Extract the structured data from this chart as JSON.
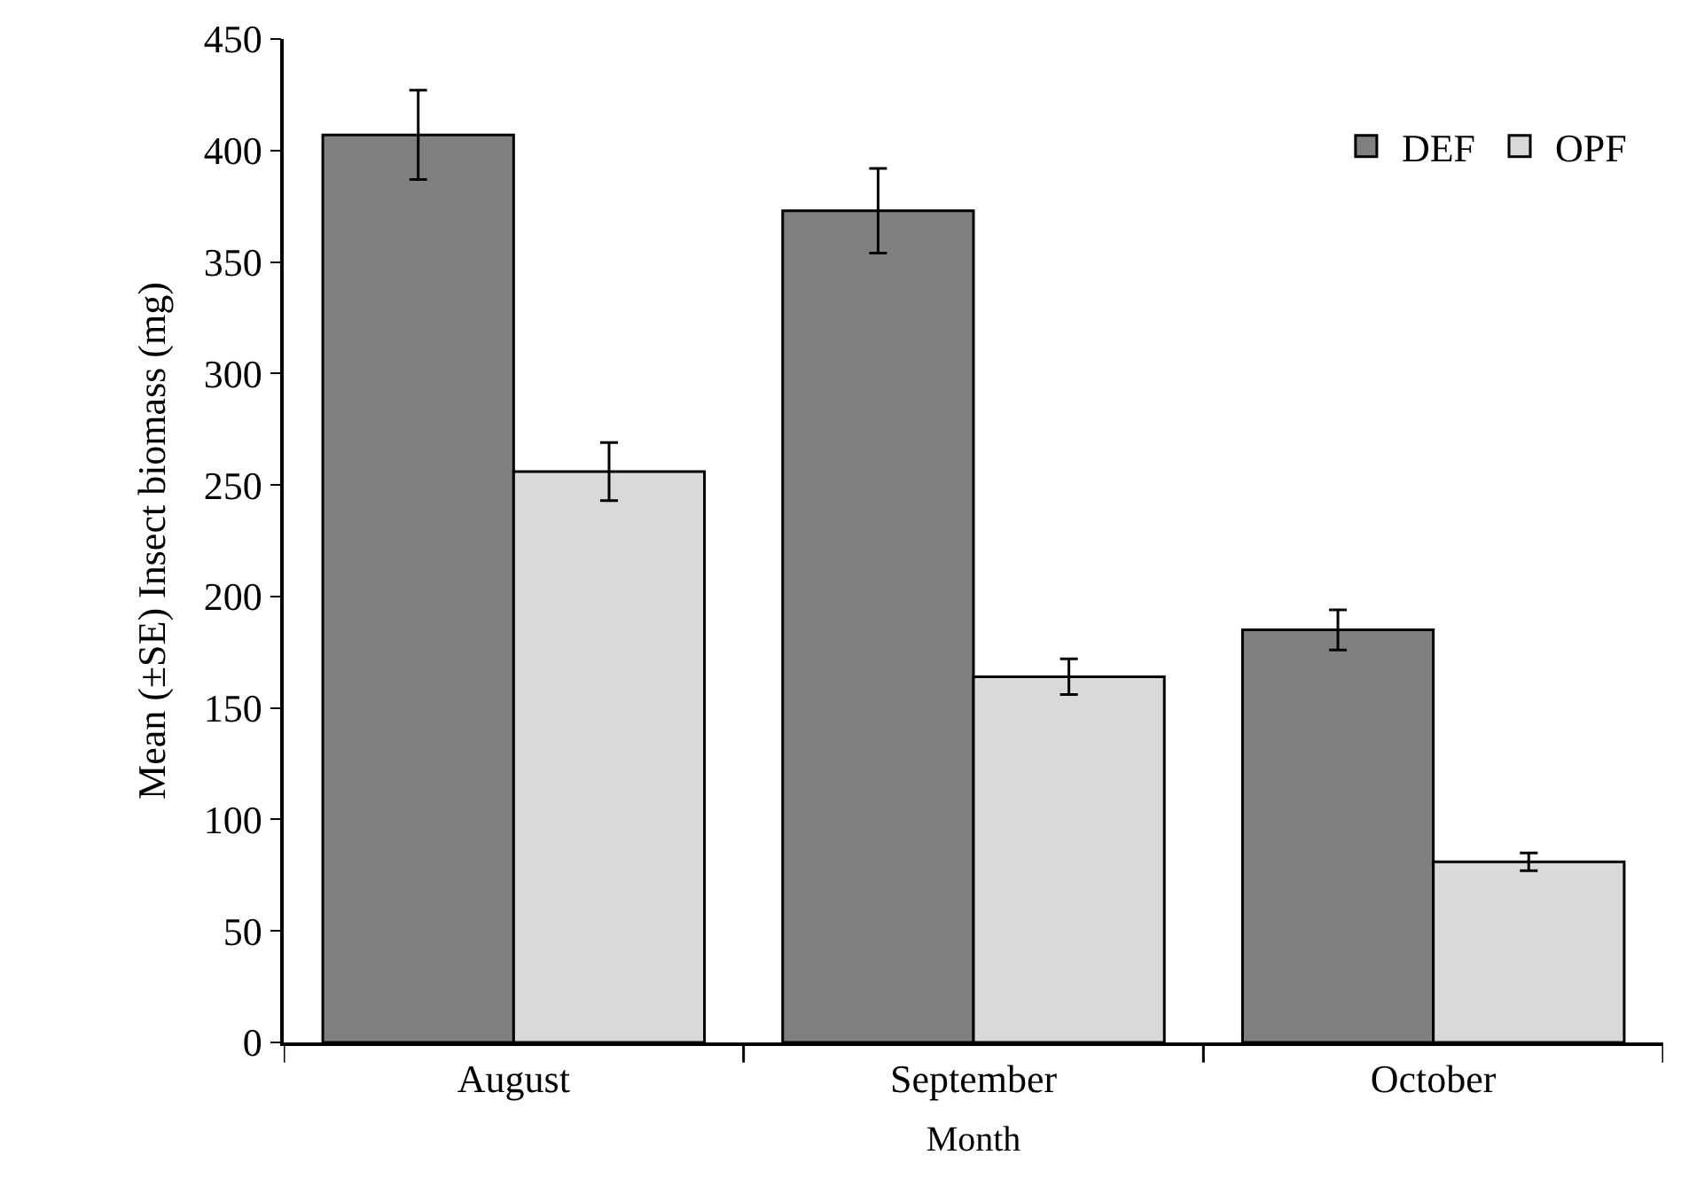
{
  "chart_data": {
    "type": "bar",
    "xlabel": "Month",
    "ylabel": "Mean (±SE) Insect biomass (mg)",
    "categories": [
      "August",
      "September",
      "October"
    ],
    "series": [
      {
        "name": "DEF",
        "color": "#808080",
        "values": [
          407,
          373,
          185
        ],
        "errors": [
          20,
          19,
          9
        ]
      },
      {
        "name": "OPF",
        "color": "#d9d9d9",
        "values": [
          256,
          164,
          81
        ],
        "errors": [
          13,
          8,
          4
        ]
      }
    ],
    "ylim": [
      0,
      450
    ],
    "yticks": [
      0,
      50,
      100,
      150,
      200,
      250,
      300,
      350,
      400,
      450
    ],
    "legend": "top right"
  }
}
